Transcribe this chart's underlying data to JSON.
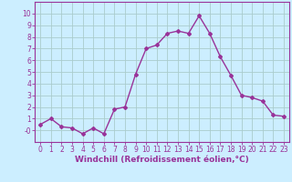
{
  "hours": [
    0,
    1,
    2,
    3,
    4,
    5,
    6,
    7,
    8,
    9,
    10,
    11,
    12,
    13,
    14,
    15,
    16,
    17,
    18,
    19,
    20,
    21,
    22,
    23
  ],
  "values": [
    0.5,
    1.0,
    0.3,
    0.2,
    -0.3,
    0.2,
    -0.3,
    1.8,
    2.0,
    4.8,
    7.0,
    7.3,
    8.3,
    8.5,
    8.3,
    9.8,
    8.3,
    6.3,
    4.7,
    3.0,
    2.8,
    2.5,
    1.3,
    1.2
  ],
  "line_color": "#993399",
  "marker": "D",
  "marker_size": 2.0,
  "line_width": 1.0,
  "bg_color": "#cceeff",
  "grid_color": "#aacccc",
  "xlabel": "Windchill (Refroidissement éolien,°C)",
  "ylim": [
    -1,
    11
  ],
  "xlim": [
    -0.5,
    23.5
  ],
  "yticks": [
    0,
    1,
    2,
    3,
    4,
    5,
    6,
    7,
    8,
    9,
    10
  ],
  "ytick_labels": [
    "-0",
    "1",
    "2",
    "3",
    "4",
    "5",
    "6",
    "7",
    "8",
    "9",
    "10"
  ],
  "xtick_labels": [
    "0",
    "1",
    "2",
    "3",
    "4",
    "5",
    "6",
    "7",
    "8",
    "9",
    "10",
    "11",
    "12",
    "13",
    "14",
    "15",
    "16",
    "17",
    "18",
    "19",
    "20",
    "21",
    "22",
    "23"
  ],
  "tick_color": "#993399",
  "tick_fontsize": 5.5,
  "xlabel_fontsize": 6.5,
  "axes_color": "#993399"
}
